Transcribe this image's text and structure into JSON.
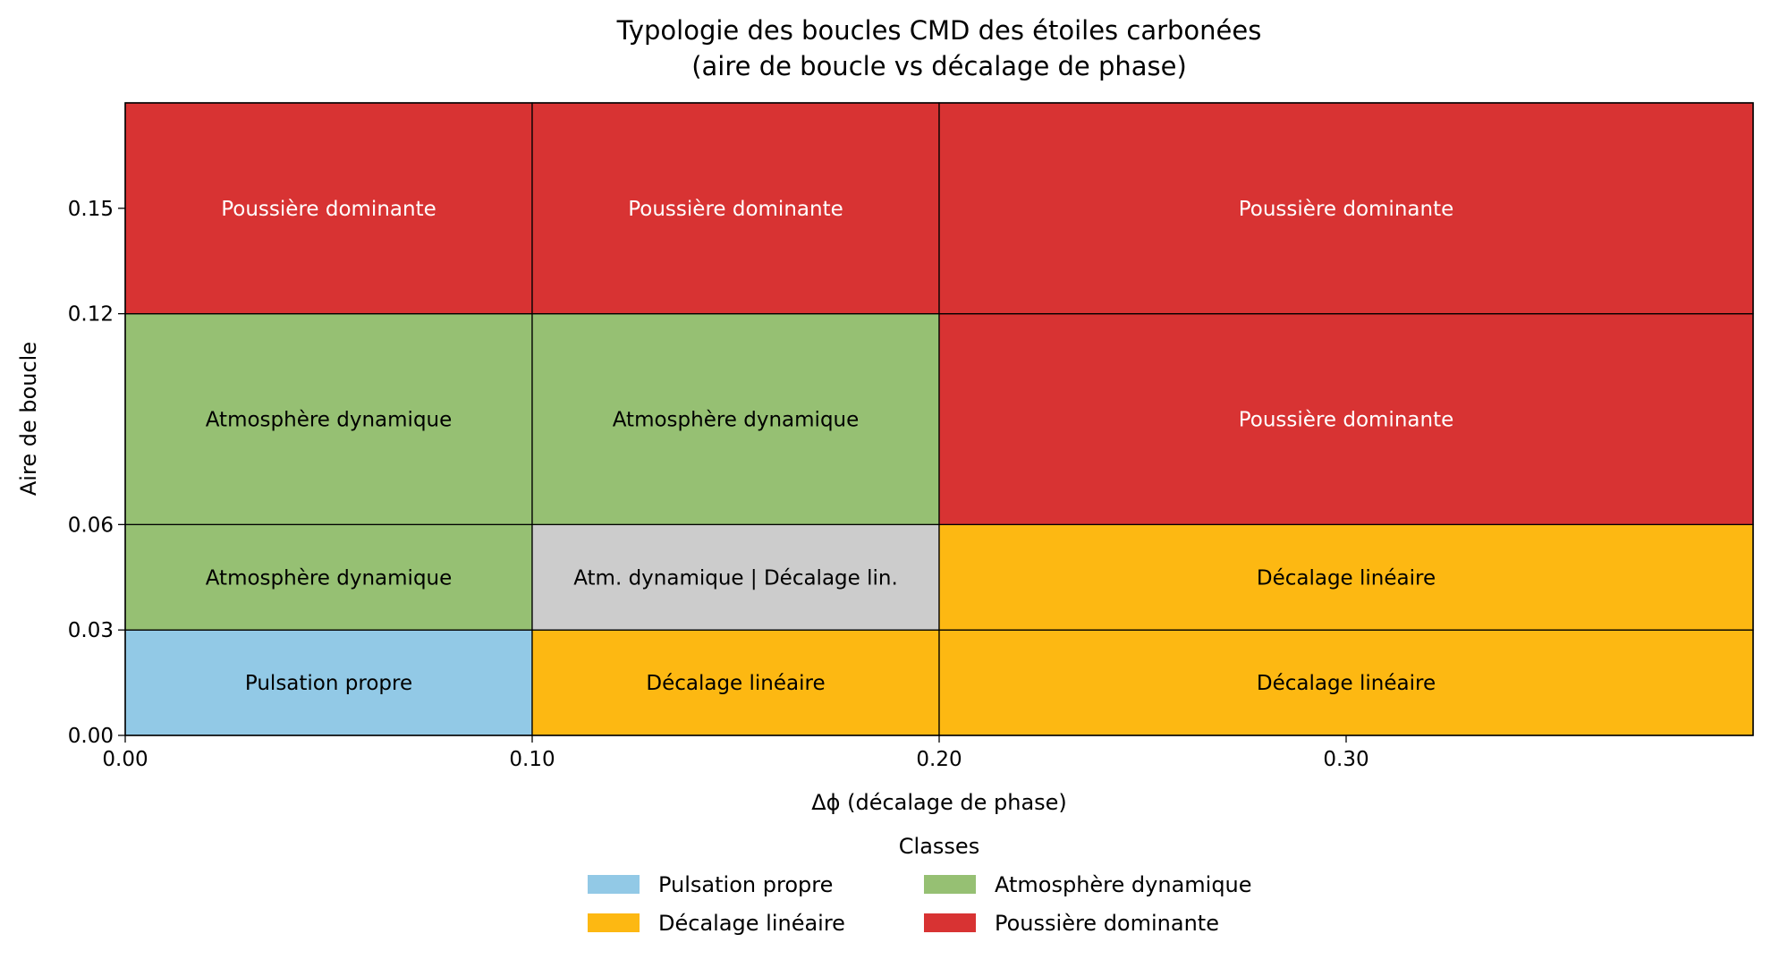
{
  "chart_data": {
    "type": "heatmap",
    "title": "Typologie des boucles CMD des étoiles carbonées",
    "subtitle": "(aire de boucle vs décalage de phase)",
    "xlabel": "Δϕ (décalage de phase)",
    "ylabel": "Aire de boucle",
    "xlim": [
      0,
      0.4
    ],
    "ylim": [
      0,
      0.18
    ],
    "xticks": [
      0.0,
      0.1,
      0.2,
      0.3
    ],
    "xtick_labels": [
      "0.00",
      "0.10",
      "0.20",
      "0.30"
    ],
    "yticks": [
      0.0,
      0.03,
      0.06,
      0.12,
      0.15
    ],
    "ytick_labels": [
      "0.00",
      "0.03",
      "0.06",
      "0.12",
      "0.15"
    ],
    "grid": false,
    "cells": [
      {
        "x": [
          0.0,
          0.1
        ],
        "y": [
          0.0,
          0.03
        ],
        "label": "Pulsation propre",
        "color": "#92c9e6",
        "text_color": "#000000"
      },
      {
        "x": [
          0.1,
          0.2
        ],
        "y": [
          0.0,
          0.03
        ],
        "label": "Décalage linéaire",
        "color": "#fdb812",
        "text_color": "#000000"
      },
      {
        "x": [
          0.2,
          0.4
        ],
        "y": [
          0.0,
          0.03
        ],
        "label": "Décalage linéaire",
        "color": "#fdb812",
        "text_color": "#000000"
      },
      {
        "x": [
          0.0,
          0.1
        ],
        "y": [
          0.03,
          0.06
        ],
        "label": "Atmosphère dynamique",
        "color": "#96c073",
        "text_color": "#000000"
      },
      {
        "x": [
          0.1,
          0.2
        ],
        "y": [
          0.03,
          0.06
        ],
        "label": "Atm. dynamique | Décalage lin.",
        "color": "#cccccc",
        "text_color": "#000000"
      },
      {
        "x": [
          0.2,
          0.4
        ],
        "y": [
          0.03,
          0.06
        ],
        "label": "Décalage linéaire",
        "color": "#fdb812",
        "text_color": "#000000"
      },
      {
        "x": [
          0.0,
          0.1
        ],
        "y": [
          0.06,
          0.12
        ],
        "label": "Atmosphère dynamique",
        "color": "#96c073",
        "text_color": "#000000"
      },
      {
        "x": [
          0.1,
          0.2
        ],
        "y": [
          0.06,
          0.12
        ],
        "label": "Atmosphère dynamique",
        "color": "#96c073",
        "text_color": "#000000"
      },
      {
        "x": [
          0.2,
          0.4
        ],
        "y": [
          0.06,
          0.12
        ],
        "label": "Poussière dominante",
        "color": "#d83333",
        "text_color": "#ffffff"
      },
      {
        "x": [
          0.0,
          0.1
        ],
        "y": [
          0.12,
          0.18
        ],
        "label": "Poussière dominante",
        "color": "#d83333",
        "text_color": "#ffffff"
      },
      {
        "x": [
          0.1,
          0.2
        ],
        "y": [
          0.12,
          0.18
        ],
        "label": "Poussière dominante",
        "color": "#d83333",
        "text_color": "#ffffff"
      },
      {
        "x": [
          0.2,
          0.4
        ],
        "y": [
          0.12,
          0.18
        ],
        "label": "Poussière dominante",
        "color": "#d83333",
        "text_color": "#ffffff"
      }
    ],
    "legend": {
      "title": "Classes",
      "placement": "bottom-center",
      "entries": [
        {
          "label": "Pulsation propre",
          "color": "#92c9e6"
        },
        {
          "label": "Décalage linéaire",
          "color": "#fdb812"
        },
        {
          "label": "Atmosphère dynamique",
          "color": "#96c073"
        },
        {
          "label": "Poussière dominante",
          "color": "#d83333"
        }
      ]
    }
  }
}
